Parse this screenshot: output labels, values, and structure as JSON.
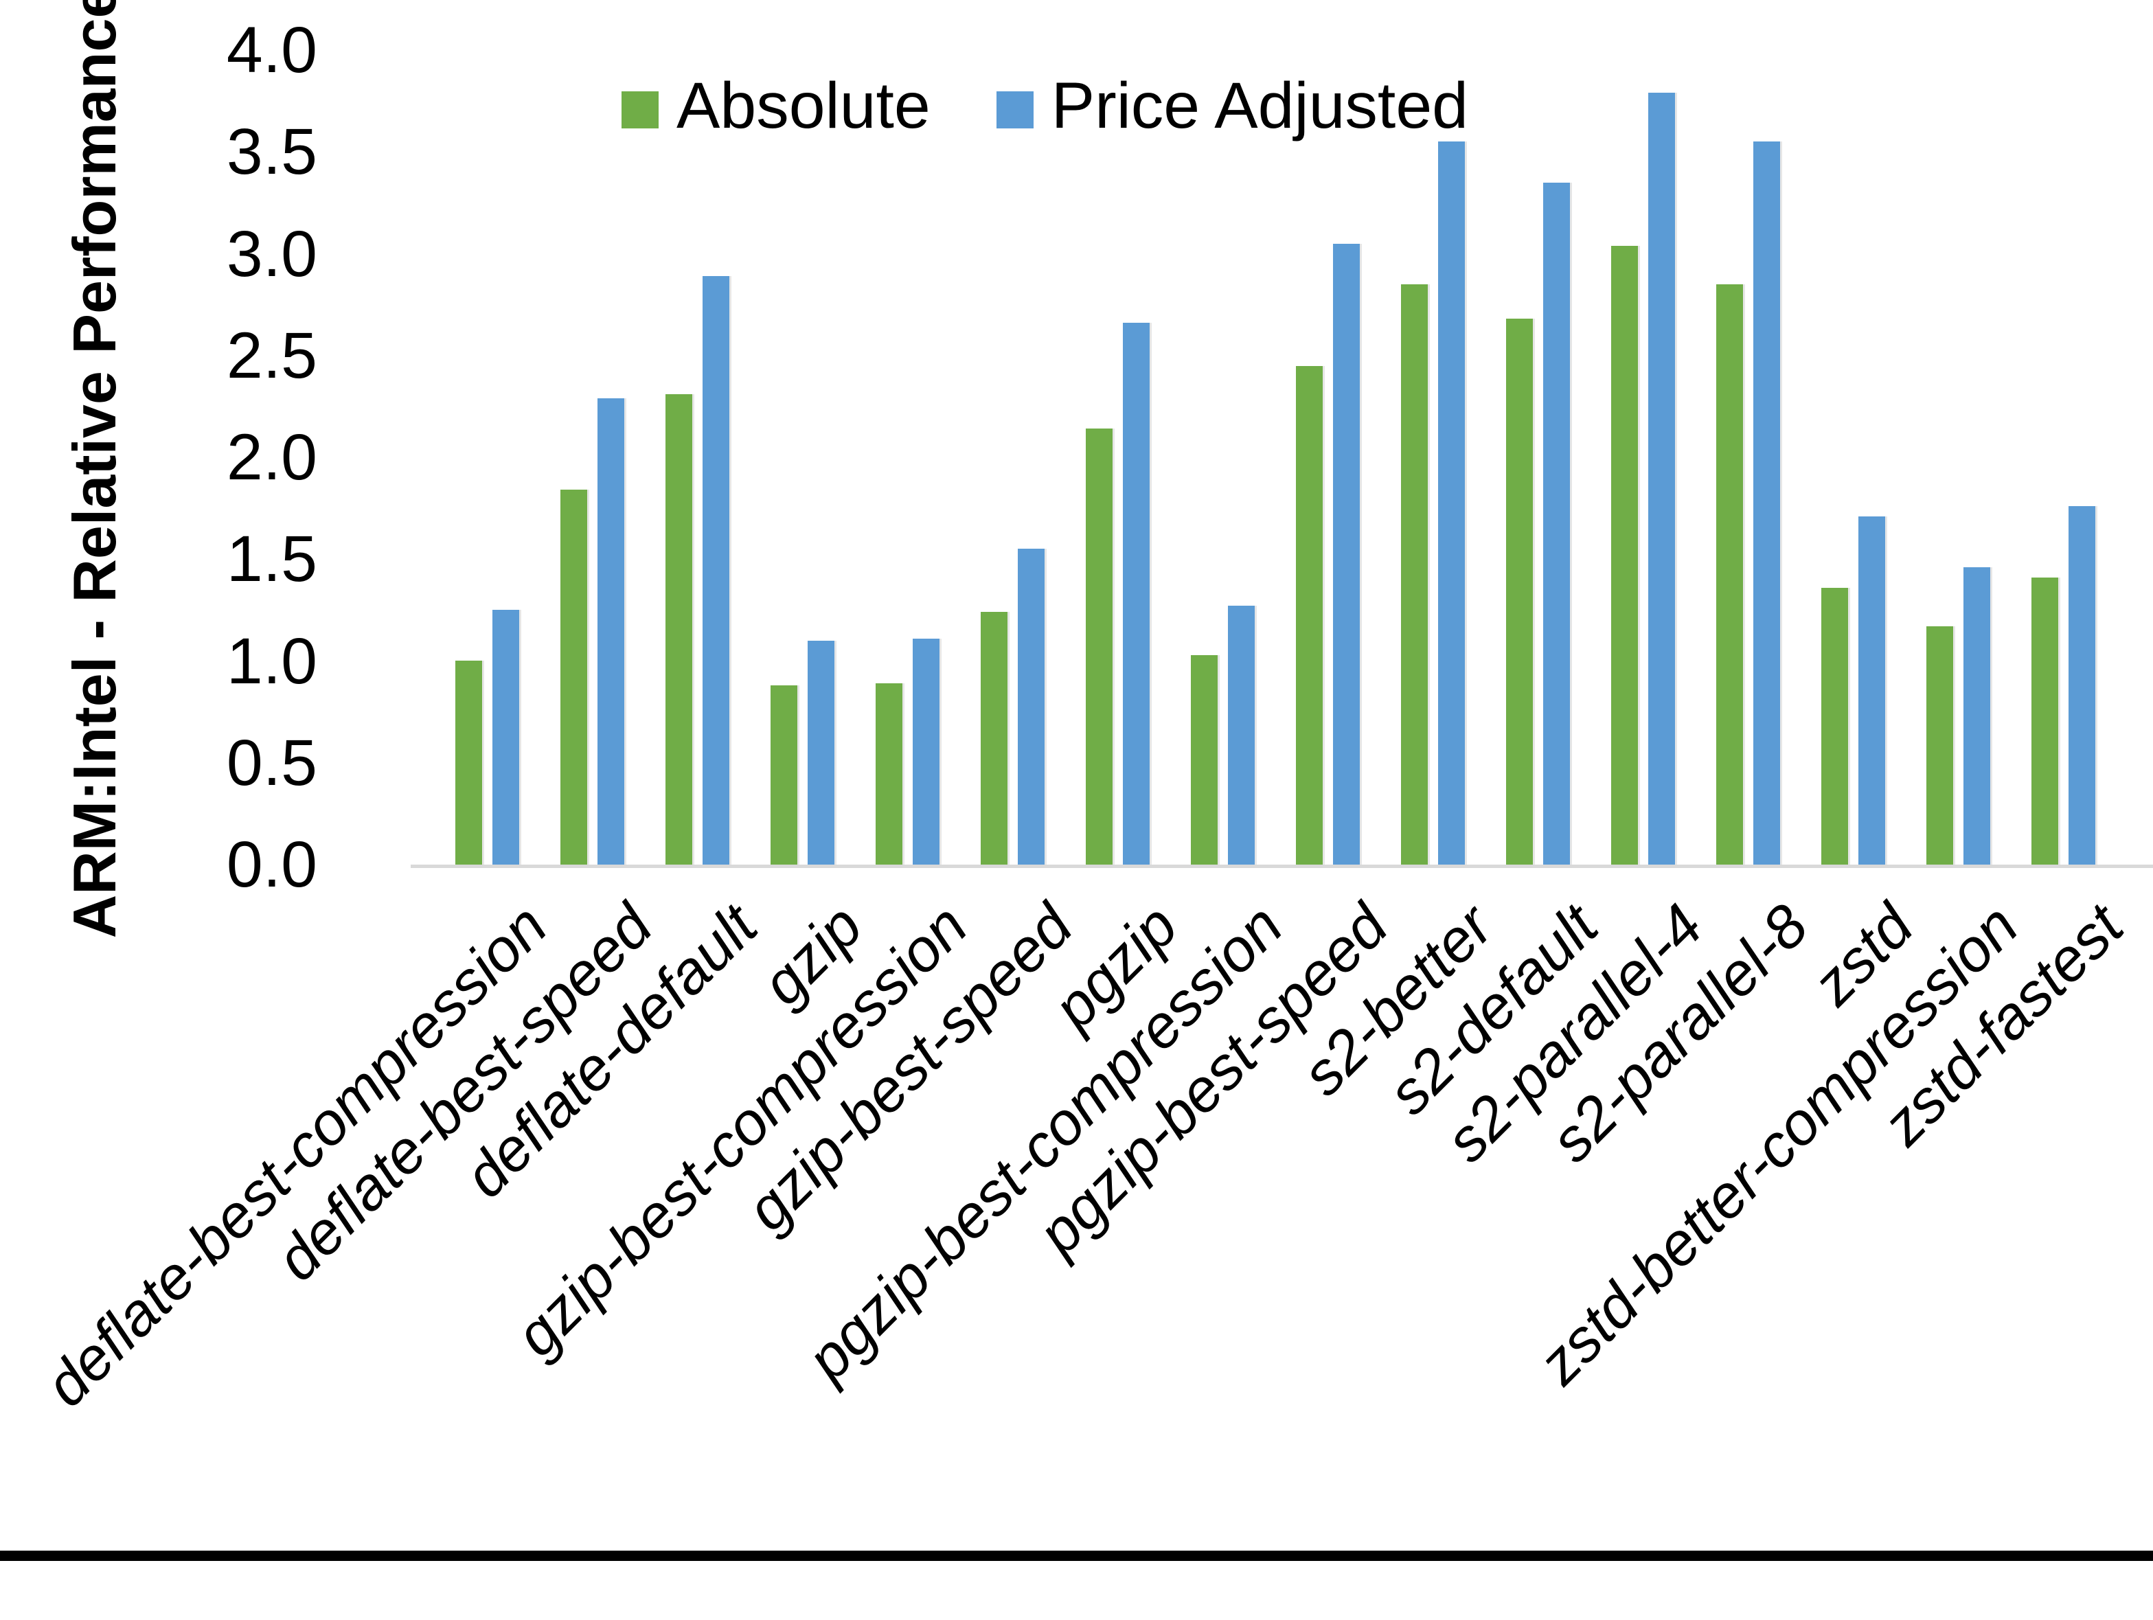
{
  "chart_data": {
    "type": "bar",
    "title": "",
    "xlabel": "",
    "ylabel": "ARM:Intel - Relative Performance",
    "ylim": [
      0.0,
      4.0
    ],
    "ytick_step": 0.5,
    "ytick_labels": [
      "0.0",
      "0.5",
      "1.0",
      "1.5",
      "2.0",
      "2.5",
      "3.0",
      "3.5",
      "4.0"
    ],
    "grid": "off",
    "legend_position": "top",
    "axis_line_color": "#D9D9D9",
    "categories": [
      "deflate-best-compression",
      "deflate-best-speed",
      "deflate-default",
      "gzip",
      "gzip-best-compression",
      "gzip-best-speed",
      "pgzip",
      "pgzip-best-compression",
      "pgzip-best-speed",
      "s2-better",
      "s2-default",
      "s2-parallel-4",
      "s2-parallel-8",
      "zstd",
      "zstd-better-compression",
      "zstd-fastest"
    ],
    "series": [
      {
        "name": "Absolute",
        "color": "#70AD47",
        "values": [
          1.0,
          1.84,
          2.31,
          0.88,
          0.89,
          1.24,
          2.14,
          1.03,
          2.45,
          2.85,
          2.68,
          3.04,
          2.85,
          1.36,
          1.17,
          1.41
        ]
      },
      {
        "name": "Price Adjusted",
        "color": "#5B9BD5",
        "values": [
          1.25,
          2.29,
          2.89,
          1.1,
          1.11,
          1.55,
          2.66,
          1.27,
          3.05,
          3.55,
          3.35,
          3.79,
          3.55,
          1.71,
          1.46,
          1.76
        ]
      }
    ]
  },
  "figure": {
    "background": "#ffffff",
    "bottom_border_color": "#000000"
  }
}
